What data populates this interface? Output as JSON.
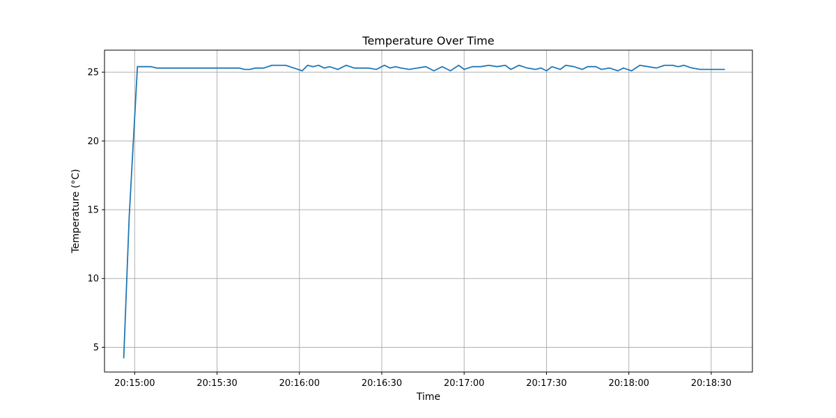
{
  "chart_data": {
    "type": "line",
    "title": "Temperature Over Time",
    "xlabel": "Time",
    "ylabel": "Temperature (°C)",
    "grid": true,
    "legend": "none",
    "x_ticks": [
      "20:15:00",
      "20:15:30",
      "20:16:00",
      "20:16:30",
      "20:17:00",
      "20:17:30",
      "20:18:00",
      "20:18:30"
    ],
    "y_ticks": [
      5,
      10,
      15,
      20,
      25
    ],
    "xlim": [
      "20:14:49",
      "20:18:45"
    ],
    "ylim": [
      3.2,
      26.6
    ],
    "series": [
      {
        "color": "#1f77b4",
        "points": [
          [
            "20:14:56",
            4.2
          ],
          [
            "20:14:58",
            14.5
          ],
          [
            "20:15:01",
            25.4
          ],
          [
            "20:15:04",
            25.4
          ],
          [
            "20:15:06",
            25.4
          ],
          [
            "20:15:08",
            25.3
          ],
          [
            "20:15:11",
            25.3
          ],
          [
            "20:15:14",
            25.3
          ],
          [
            "20:15:16",
            25.3
          ],
          [
            "20:15:19",
            25.3
          ],
          [
            "20:15:22",
            25.3
          ],
          [
            "20:15:24",
            25.3
          ],
          [
            "20:15:27",
            25.3
          ],
          [
            "20:15:30",
            25.3
          ],
          [
            "20:15:32",
            25.3
          ],
          [
            "20:15:35",
            25.3
          ],
          [
            "20:15:38",
            25.3
          ],
          [
            "20:15:40",
            25.2
          ],
          [
            "20:15:42",
            25.2
          ],
          [
            "20:15:44",
            25.3
          ],
          [
            "20:15:47",
            25.3
          ],
          [
            "20:15:50",
            25.5
          ],
          [
            "20:15:52",
            25.5
          ],
          [
            "20:15:55",
            25.5
          ],
          [
            "20:15:58",
            25.3
          ],
          [
            "20:16:01",
            25.1
          ],
          [
            "20:16:03",
            25.5
          ],
          [
            "20:16:05",
            25.4
          ],
          [
            "20:16:07",
            25.5
          ],
          [
            "20:16:09",
            25.3
          ],
          [
            "20:16:11",
            25.4
          ],
          [
            "20:16:14",
            25.2
          ],
          [
            "20:16:17",
            25.5
          ],
          [
            "20:16:20",
            25.3
          ],
          [
            "20:16:23",
            25.3
          ],
          [
            "20:16:25",
            25.3
          ],
          [
            "20:16:28",
            25.2
          ],
          [
            "20:16:31",
            25.5
          ],
          [
            "20:16:33",
            25.3
          ],
          [
            "20:16:35",
            25.4
          ],
          [
            "20:16:37",
            25.3
          ],
          [
            "20:16:40",
            25.2
          ],
          [
            "20:16:43",
            25.3
          ],
          [
            "20:16:46",
            25.4
          ],
          [
            "20:16:49",
            25.1
          ],
          [
            "20:16:52",
            25.4
          ],
          [
            "20:16:55",
            25.1
          ],
          [
            "20:16:58",
            25.5
          ],
          [
            "20:17:00",
            25.2
          ],
          [
            "20:17:03",
            25.4
          ],
          [
            "20:17:06",
            25.4
          ],
          [
            "20:17:09",
            25.5
          ],
          [
            "20:17:12",
            25.4
          ],
          [
            "20:17:15",
            25.5
          ],
          [
            "20:17:17",
            25.2
          ],
          [
            "20:17:20",
            25.5
          ],
          [
            "20:17:23",
            25.3
          ],
          [
            "20:17:26",
            25.2
          ],
          [
            "20:17:28",
            25.3
          ],
          [
            "20:17:30",
            25.1
          ],
          [
            "20:17:32",
            25.4
          ],
          [
            "20:17:35",
            25.2
          ],
          [
            "20:17:37",
            25.5
          ],
          [
            "20:17:40",
            25.4
          ],
          [
            "20:17:43",
            25.2
          ],
          [
            "20:17:45",
            25.4
          ],
          [
            "20:17:48",
            25.4
          ],
          [
            "20:17:50",
            25.2
          ],
          [
            "20:17:53",
            25.3
          ],
          [
            "20:17:56",
            25.1
          ],
          [
            "20:17:58",
            25.3
          ],
          [
            "20:18:01",
            25.1
          ],
          [
            "20:18:04",
            25.5
          ],
          [
            "20:18:07",
            25.4
          ],
          [
            "20:18:10",
            25.3
          ],
          [
            "20:18:13",
            25.5
          ],
          [
            "20:18:16",
            25.5
          ],
          [
            "20:18:18",
            25.4
          ],
          [
            "20:18:20",
            25.5
          ],
          [
            "20:18:23",
            25.3
          ],
          [
            "20:18:26",
            25.2
          ],
          [
            "20:18:29",
            25.2
          ],
          [
            "20:18:32",
            25.2
          ],
          [
            "20:18:35",
            25.2
          ]
        ]
      }
    ]
  }
}
